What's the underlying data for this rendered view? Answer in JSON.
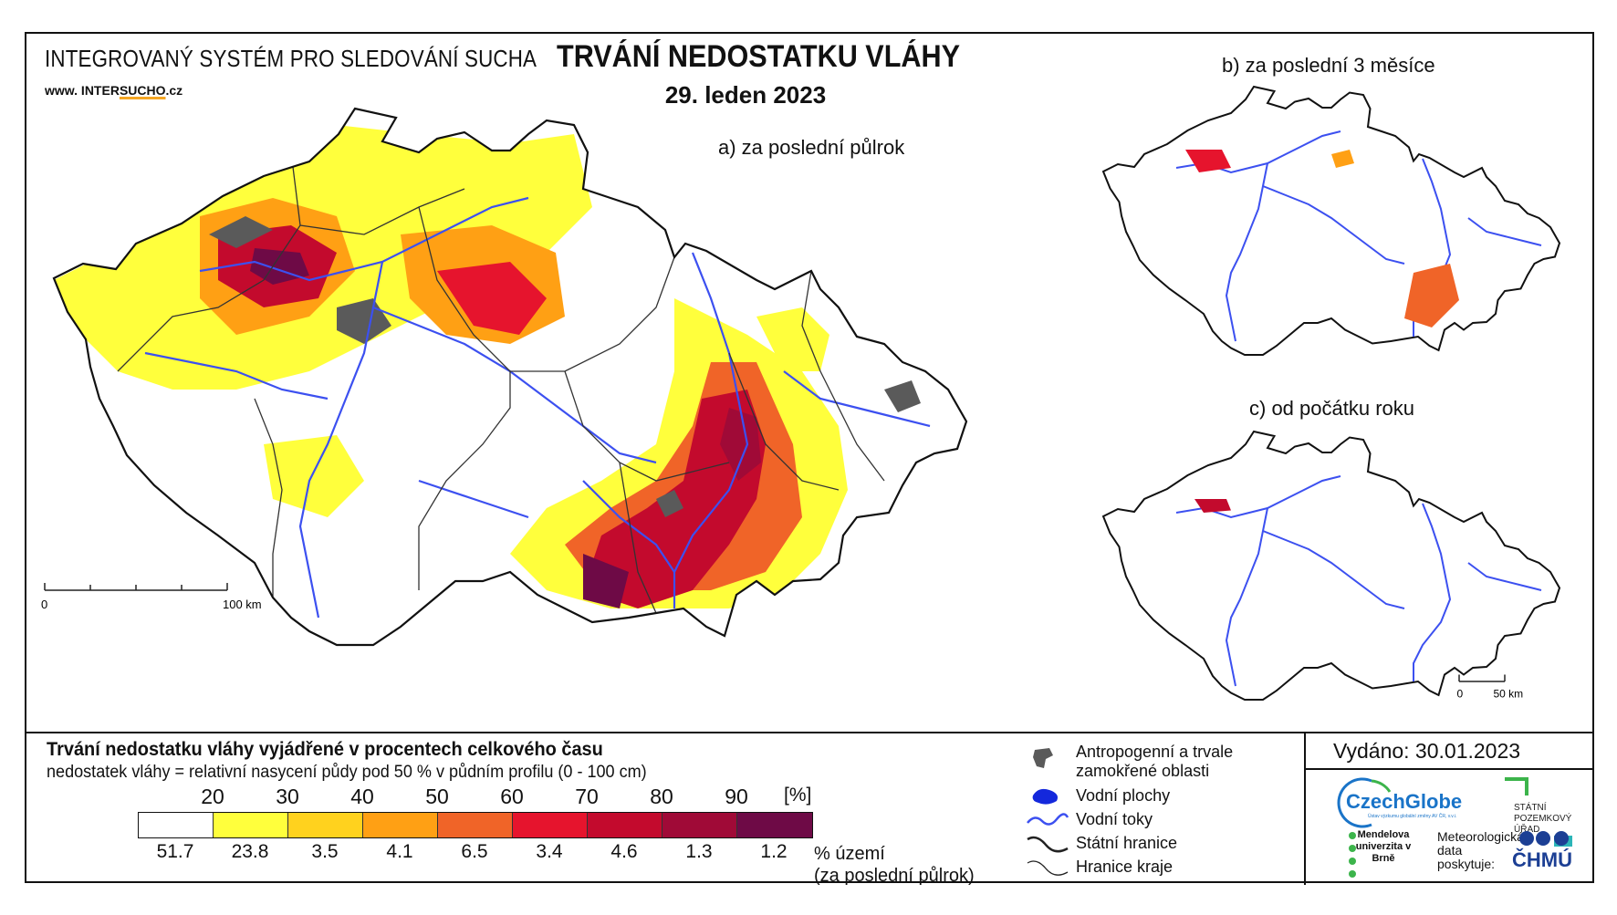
{
  "header": {
    "system_title": "INTEGROVANÝ SYSTÉM PRO SLEDOVÁNÍ SUCHA",
    "web_prefix": "www. INTER",
    "web_highlight": "SUCHO",
    "web_suffix": ".cz",
    "main_title": "TRVÁNÍ NEDOSTATKU VLÁHY",
    "date": "29. leden 2023"
  },
  "panels": {
    "a": "a) za poslední půlrok",
    "b": "b) za poslední 3 měsíce",
    "c": "c) od počátku roku"
  },
  "scalebars": {
    "a_start": "0",
    "a_end": "100 km",
    "small_start": "0",
    "small_end": "50 km"
  },
  "legend": {
    "title": "Trvání nedostatku vláhy vyjádřené v procentech celkového času",
    "subtitle": "nedostatek vláhy = relativní nasycení půdy pod 50 % v půdním profilu (0 - 100 cm)",
    "units": "[%]",
    "ticks": [
      "20",
      "30",
      "40",
      "50",
      "60",
      "70",
      "80",
      "90"
    ],
    "colors": [
      "#ffffff",
      "#ffff3c",
      "#ffd21e",
      "#ffa014",
      "#f06428",
      "#e6142d",
      "#c30a2d",
      "#a00a37",
      "#6e0a46"
    ],
    "percent_area": [
      "51.7",
      "23.8",
      "3.5",
      "4.1",
      "6.5",
      "3.4",
      "4.6",
      "1.3",
      "1.2"
    ],
    "percent_label_1": "% území",
    "percent_label_2": "(za poslední půlrok)"
  },
  "map_legend": {
    "anthropogenic_1": "Antropogenní a trvale",
    "anthropogenic_2": "zamokřené oblasti",
    "water_bodies": "Vodní plochy",
    "rivers": "Vodní toky",
    "state_border": "Státní hranice",
    "region_border": "Hranice kraje"
  },
  "issued": "Vydáno: 30.01.2023",
  "partners": {
    "czechglobe": "CzechGlobe",
    "czechglobe_sub": "Ústav výzkumu globální změny AV ČR, v.v.i.",
    "spu": "STÁTNÍ POZEMKOVÝ ÚŘAD",
    "mendel": "Mendelova univerzita v Brně",
    "meteo": "Meteorologická data poskytuje:",
    "chmu": "ČHMÚ"
  },
  "icon_colors": {
    "river": "#3c50f0",
    "anthropogenic": "#5a5a5a",
    "water": "#1428dc"
  }
}
